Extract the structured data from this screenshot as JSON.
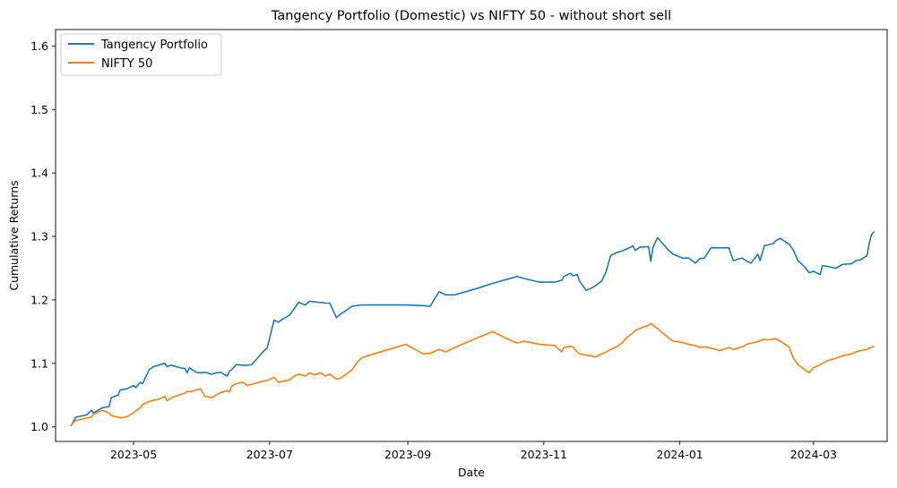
{
  "chart_data": {
    "type": "line",
    "title": "Tangency Portfolio (Domestic) vs NIFTY 50 - without short sell",
    "xlabel": "Date",
    "ylabel": "Cumulative Returns",
    "xlim": [
      "2023-03-27",
      "2024-04-03"
    ],
    "ylim": [
      0.977,
      1.626
    ],
    "x_ticks": [
      {
        "date": "2023-05-01",
        "label": "2023-05"
      },
      {
        "date": "2023-07-01",
        "label": "2023-07"
      },
      {
        "date": "2023-09-01",
        "label": "2023-09"
      },
      {
        "date": "2023-11-01",
        "label": "2023-11"
      },
      {
        "date": "2024-01-01",
        "label": "2024-01"
      },
      {
        "date": "2024-03-01",
        "label": "2024-03"
      }
    ],
    "y_ticks": [
      1.0,
      1.1,
      1.2,
      1.3,
      1.4,
      1.5,
      1.6
    ],
    "y_tick_labels": [
      "1.0",
      "1.1",
      "1.2",
      "1.3",
      "1.4",
      "1.5",
      "1.6"
    ],
    "grid": false,
    "legend": "top-left",
    "series": [
      {
        "name": "Tangency Portfolio",
        "color": "#1f77b4",
        "points": [
          [
            "2023-04-03",
            1.002
          ],
          [
            "2023-04-05",
            1.015
          ],
          [
            "2023-04-10",
            1.019
          ],
          [
            "2023-04-12",
            1.026
          ],
          [
            "2023-04-13",
            1.022
          ],
          [
            "2023-04-17",
            1.03
          ],
          [
            "2023-04-20",
            1.032
          ],
          [
            "2023-04-21",
            1.046
          ],
          [
            "2023-04-24",
            1.05
          ],
          [
            "2023-04-25",
            1.058
          ],
          [
            "2023-04-28",
            1.06
          ],
          [
            "2023-05-01",
            1.065
          ],
          [
            "2023-05-02",
            1.062
          ],
          [
            "2023-05-04",
            1.07
          ],
          [
            "2023-05-05",
            1.068
          ],
          [
            "2023-05-08",
            1.09
          ],
          [
            "2023-05-10",
            1.095
          ],
          [
            "2023-05-12",
            1.097
          ],
          [
            "2023-05-15",
            1.1
          ],
          [
            "2023-05-16",
            1.095
          ],
          [
            "2023-05-18",
            1.097
          ],
          [
            "2023-05-22",
            1.093
          ],
          [
            "2023-05-24",
            1.092
          ],
          [
            "2023-05-25",
            1.085
          ],
          [
            "2023-05-26",
            1.093
          ],
          [
            "2023-05-29",
            1.086
          ],
          [
            "2023-05-31",
            1.085
          ],
          [
            "2023-06-02",
            1.086
          ],
          [
            "2023-06-05",
            1.083
          ],
          [
            "2023-06-07",
            1.085
          ],
          [
            "2023-06-09",
            1.086
          ],
          [
            "2023-06-12",
            1.08
          ],
          [
            "2023-06-13",
            1.088
          ],
          [
            "2023-06-14",
            1.09
          ],
          [
            "2023-06-16",
            1.098
          ],
          [
            "2023-06-19",
            1.097
          ],
          [
            "2023-06-21",
            1.097
          ],
          [
            "2023-06-23",
            1.098
          ],
          [
            "2023-06-26",
            1.11
          ],
          [
            "2023-06-28",
            1.118
          ],
          [
            "2023-06-30",
            1.125
          ],
          [
            "2023-07-03",
            1.168
          ],
          [
            "2023-07-05",
            1.165
          ],
          [
            "2023-07-07",
            1.17
          ],
          [
            "2023-07-10",
            1.176
          ],
          [
            "2023-07-12",
            1.186
          ],
          [
            "2023-07-14",
            1.196
          ],
          [
            "2023-07-17",
            1.192
          ],
          [
            "2023-07-19",
            1.198
          ],
          [
            "2023-07-21",
            1.197
          ],
          [
            "2023-07-24",
            1.196
          ],
          [
            "2023-07-26",
            1.195
          ],
          [
            "2023-07-28",
            1.195
          ],
          [
            "2023-07-31",
            1.172
          ],
          [
            "2023-08-02",
            1.178
          ],
          [
            "2023-08-07",
            1.19
          ],
          [
            "2023-08-09",
            1.191
          ],
          [
            "2023-08-11",
            1.192
          ],
          [
            "2023-08-14",
            1.192
          ],
          [
            "2023-08-31",
            1.192
          ],
          [
            "2023-09-08",
            1.191
          ],
          [
            "2023-09-11",
            1.19
          ],
          [
            "2023-09-15",
            1.213
          ],
          [
            "2023-09-18",
            1.208
          ],
          [
            "2023-09-22",
            1.208
          ],
          [
            "2023-10-02",
            1.218
          ],
          [
            "2023-10-09",
            1.226
          ],
          [
            "2023-10-16",
            1.233
          ],
          [
            "2023-10-20",
            1.237
          ],
          [
            "2023-10-23",
            1.234
          ],
          [
            "2023-10-30",
            1.228
          ],
          [
            "2023-11-06",
            1.228
          ],
          [
            "2023-11-09",
            1.231
          ],
          [
            "2023-11-10",
            1.237
          ],
          [
            "2023-11-13",
            1.242
          ],
          [
            "2023-11-14",
            1.238
          ],
          [
            "2023-11-16",
            1.24
          ],
          [
            "2023-11-17",
            1.23
          ],
          [
            "2023-11-20",
            1.215
          ],
          [
            "2023-11-22",
            1.218
          ],
          [
            "2023-11-24",
            1.222
          ],
          [
            "2023-11-27",
            1.23
          ],
          [
            "2023-11-29",
            1.245
          ],
          [
            "2023-12-01",
            1.27
          ],
          [
            "2023-12-04",
            1.275
          ],
          [
            "2023-12-06",
            1.277
          ],
          [
            "2023-12-08",
            1.28
          ],
          [
            "2023-12-11",
            1.285
          ],
          [
            "2023-12-12",
            1.278
          ],
          [
            "2023-12-14",
            1.283
          ],
          [
            "2023-12-18",
            1.284
          ],
          [
            "2023-12-19",
            1.261
          ],
          [
            "2023-12-20",
            1.283
          ],
          [
            "2023-12-22",
            1.298
          ],
          [
            "2023-12-27",
            1.278
          ],
          [
            "2023-12-29",
            1.272
          ],
          [
            "2024-01-02",
            1.266
          ],
          [
            "2024-01-05",
            1.266
          ],
          [
            "2024-01-08",
            1.258
          ],
          [
            "2024-01-10",
            1.265
          ],
          [
            "2024-01-12",
            1.266
          ],
          [
            "2024-01-15",
            1.282
          ],
          [
            "2024-01-19",
            1.282
          ],
          [
            "2024-01-23",
            1.282
          ],
          [
            "2024-01-25",
            1.262
          ],
          [
            "2024-01-29",
            1.266
          ],
          [
            "2024-01-31",
            1.261
          ],
          [
            "2024-02-02",
            1.258
          ],
          [
            "2024-02-05",
            1.272
          ],
          [
            "2024-02-06",
            1.262
          ],
          [
            "2024-02-08",
            1.286
          ],
          [
            "2024-02-09",
            1.286
          ],
          [
            "2024-02-12",
            1.289
          ],
          [
            "2024-02-13",
            1.293
          ],
          [
            "2024-02-15",
            1.297
          ],
          [
            "2024-02-19",
            1.288
          ],
          [
            "2024-02-21",
            1.278
          ],
          [
            "2024-02-23",
            1.262
          ],
          [
            "2024-02-26",
            1.252
          ],
          [
            "2024-02-28",
            1.243
          ],
          [
            "2024-03-01",
            1.245
          ],
          [
            "2024-03-04",
            1.24
          ],
          [
            "2024-03-05",
            1.254
          ],
          [
            "2024-03-07",
            1.253
          ],
          [
            "2024-03-11",
            1.25
          ],
          [
            "2024-03-14",
            1.256
          ],
          [
            "2024-03-18",
            1.257
          ],
          [
            "2024-03-20",
            1.262
          ],
          [
            "2024-03-22",
            1.263
          ],
          [
            "2024-03-25",
            1.27
          ],
          [
            "2024-03-26",
            1.29
          ],
          [
            "2024-03-27",
            1.303
          ],
          [
            "2024-03-28",
            1.307
          ]
        ]
      },
      {
        "name": "NIFTY 50",
        "color": "#ff7f0e",
        "points": [
          [
            "2023-04-03",
            1.003
          ],
          [
            "2023-04-05",
            1.01
          ],
          [
            "2023-04-10",
            1.014
          ],
          [
            "2023-04-12",
            1.015
          ],
          [
            "2023-04-13",
            1.02
          ],
          [
            "2023-04-17",
            1.026
          ],
          [
            "2023-04-20",
            1.022
          ],
          [
            "2023-04-21",
            1.018
          ],
          [
            "2023-04-24",
            1.015
          ],
          [
            "2023-04-25",
            1.014
          ],
          [
            "2023-04-28",
            1.016
          ],
          [
            "2023-05-01",
            1.022
          ],
          [
            "2023-05-02",
            1.025
          ],
          [
            "2023-05-04",
            1.03
          ],
          [
            "2023-05-05",
            1.035
          ],
          [
            "2023-05-08",
            1.04
          ],
          [
            "2023-05-10",
            1.042
          ],
          [
            "2023-05-12",
            1.043
          ],
          [
            "2023-05-15",
            1.048
          ],
          [
            "2023-05-16",
            1.041
          ],
          [
            "2023-05-18",
            1.046
          ],
          [
            "2023-05-22",
            1.051
          ],
          [
            "2023-05-24",
            1.053
          ],
          [
            "2023-05-25",
            1.056
          ],
          [
            "2023-05-26",
            1.055
          ],
          [
            "2023-05-29",
            1.058
          ],
          [
            "2023-05-31",
            1.06
          ],
          [
            "2023-06-02",
            1.048
          ],
          [
            "2023-06-05",
            1.046
          ],
          [
            "2023-06-07",
            1.05
          ],
          [
            "2023-06-09",
            1.054
          ],
          [
            "2023-06-12",
            1.057
          ],
          [
            "2023-06-13",
            1.055
          ],
          [
            "2023-06-14",
            1.064
          ],
          [
            "2023-06-16",
            1.068
          ],
          [
            "2023-06-19",
            1.07
          ],
          [
            "2023-06-21",
            1.065
          ],
          [
            "2023-06-23",
            1.067
          ],
          [
            "2023-06-26",
            1.07
          ],
          [
            "2023-06-28",
            1.072
          ],
          [
            "2023-06-30",
            1.073
          ],
          [
            "2023-07-03",
            1.078
          ],
          [
            "2023-07-05",
            1.07
          ],
          [
            "2023-07-07",
            1.072
          ],
          [
            "2023-07-10",
            1.074
          ],
          [
            "2023-07-12",
            1.08
          ],
          [
            "2023-07-14",
            1.083
          ],
          [
            "2023-07-17",
            1.08
          ],
          [
            "2023-07-19",
            1.085
          ],
          [
            "2023-07-21",
            1.082
          ],
          [
            "2023-07-24",
            1.085
          ],
          [
            "2023-07-26",
            1.08
          ],
          [
            "2023-07-28",
            1.083
          ],
          [
            "2023-07-31",
            1.075
          ],
          [
            "2023-08-02",
            1.077
          ],
          [
            "2023-08-07",
            1.09
          ],
          [
            "2023-08-09",
            1.1
          ],
          [
            "2023-08-11",
            1.108
          ],
          [
            "2023-08-14",
            1.112
          ],
          [
            "2023-08-31",
            1.13
          ],
          [
            "2023-09-08",
            1.115
          ],
          [
            "2023-09-11",
            1.116
          ],
          [
            "2023-09-15",
            1.122
          ],
          [
            "2023-09-18",
            1.118
          ],
          [
            "2023-09-22",
            1.125
          ],
          [
            "2023-10-02",
            1.14
          ],
          [
            "2023-10-09",
            1.15
          ],
          [
            "2023-10-16",
            1.138
          ],
          [
            "2023-10-20",
            1.132
          ],
          [
            "2023-10-23",
            1.135
          ],
          [
            "2023-10-30",
            1.13
          ],
          [
            "2023-11-06",
            1.128
          ],
          [
            "2023-11-09",
            1.118
          ],
          [
            "2023-11-10",
            1.125
          ],
          [
            "2023-11-13",
            1.127
          ],
          [
            "2023-11-14",
            1.126
          ],
          [
            "2023-11-16",
            1.118
          ],
          [
            "2023-11-17",
            1.115
          ],
          [
            "2023-11-20",
            1.113
          ],
          [
            "2023-11-22",
            1.112
          ],
          [
            "2023-11-24",
            1.11
          ],
          [
            "2023-11-27",
            1.115
          ],
          [
            "2023-11-29",
            1.118
          ],
          [
            "2023-12-01",
            1.122
          ],
          [
            "2023-12-04",
            1.127
          ],
          [
            "2023-12-06",
            1.132
          ],
          [
            "2023-12-08",
            1.14
          ],
          [
            "2023-12-11",
            1.148
          ],
          [
            "2023-12-12",
            1.152
          ],
          [
            "2023-12-14",
            1.155
          ],
          [
            "2023-12-18",
            1.16
          ],
          [
            "2023-12-19",
            1.163
          ],
          [
            "2023-12-20",
            1.16
          ],
          [
            "2023-12-22",
            1.155
          ],
          [
            "2023-12-27",
            1.14
          ],
          [
            "2023-12-29",
            1.135
          ],
          [
            "2024-01-02",
            1.133
          ],
          [
            "2024-01-05",
            1.13
          ],
          [
            "2024-01-08",
            1.128
          ],
          [
            "2024-01-10",
            1.125
          ],
          [
            "2024-01-12",
            1.126
          ],
          [
            "2024-01-15",
            1.124
          ],
          [
            "2024-01-19",
            1.12
          ],
          [
            "2024-01-23",
            1.125
          ],
          [
            "2024-01-25",
            1.122
          ],
          [
            "2024-01-29",
            1.126
          ],
          [
            "2024-01-31",
            1.13
          ],
          [
            "2024-02-02",
            1.132
          ],
          [
            "2024-02-05",
            1.134
          ],
          [
            "2024-02-06",
            1.136
          ],
          [
            "2024-02-08",
            1.138
          ],
          [
            "2024-02-09",
            1.137
          ],
          [
            "2024-02-12",
            1.138
          ],
          [
            "2024-02-13",
            1.139
          ],
          [
            "2024-02-15",
            1.135
          ],
          [
            "2024-02-19",
            1.126
          ],
          [
            "2024-02-21",
            1.108
          ],
          [
            "2024-02-23",
            1.098
          ],
          [
            "2024-02-26",
            1.09
          ],
          [
            "2024-02-28",
            1.085
          ],
          [
            "2024-03-01",
            1.093
          ],
          [
            "2024-03-04",
            1.098
          ],
          [
            "2024-03-05",
            1.1
          ],
          [
            "2024-03-07",
            1.104
          ],
          [
            "2024-03-11",
            1.108
          ],
          [
            "2024-03-14",
            1.112
          ],
          [
            "2024-03-18",
            1.115
          ],
          [
            "2024-03-20",
            1.118
          ],
          [
            "2024-03-22",
            1.12
          ],
          [
            "2024-03-25",
            1.122
          ],
          [
            "2024-03-26",
            1.124
          ],
          [
            "2024-03-27",
            1.125
          ],
          [
            "2024-03-28",
            1.127
          ]
        ]
      }
    ]
  }
}
